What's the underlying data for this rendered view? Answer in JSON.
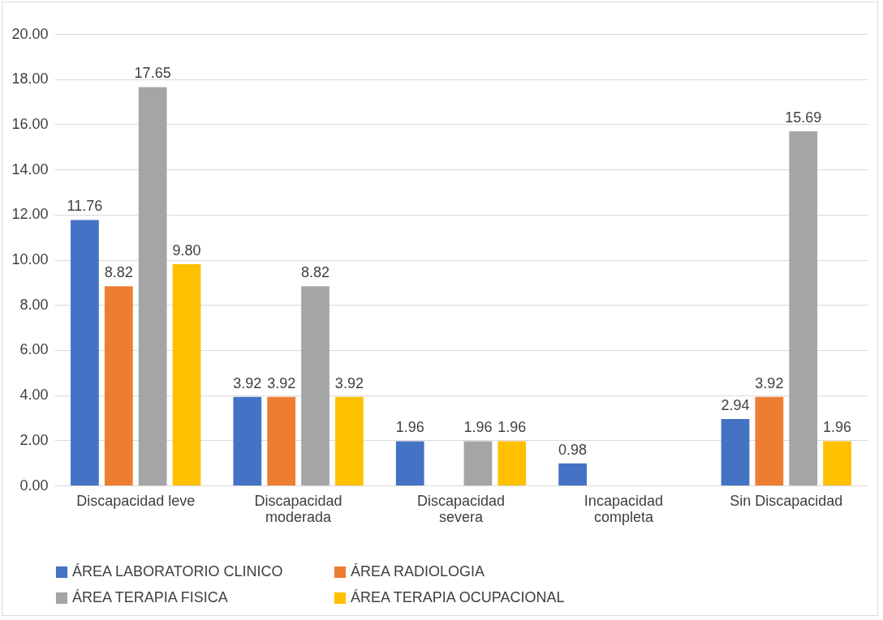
{
  "chart_data": {
    "type": "bar",
    "categories": [
      "Discapacidad leve",
      "Discapacidad moderada",
      "Discapacidad severa",
      "Incapacidad completa",
      "Sin Discapacidad"
    ],
    "series": [
      {
        "name": "ÁREA LABORATORIO CLINICO",
        "color": "#4472c4",
        "values": [
          11.76,
          3.92,
          1.96,
          0.98,
          2.94
        ],
        "value_labels": [
          "11.76",
          "3.92",
          "1.96",
          "0.98",
          "2.94"
        ]
      },
      {
        "name": "ÁREA RADIOLOGIA",
        "color": "#ed7d31",
        "values": [
          8.82,
          3.92,
          null,
          null,
          3.92
        ],
        "value_labels": [
          "8.82",
          "3.92",
          null,
          null,
          "3.92"
        ]
      },
      {
        "name": "ÁREA TERAPIA FISICA",
        "color": "#a5a5a5",
        "values": [
          17.65,
          8.82,
          1.96,
          null,
          15.69
        ],
        "value_labels": [
          "17.65",
          "8.82",
          "1.96",
          null,
          "15.69"
        ]
      },
      {
        "name": "ÁREA TERAPIA OCUPACIONAL",
        "color": "#ffc000",
        "values": [
          9.8,
          3.92,
          1.96,
          null,
          1.96
        ],
        "value_labels": [
          "9.80",
          "3.92",
          "1.96",
          null,
          "1.96"
        ]
      }
    ],
    "ylim": [
      0,
      20
    ],
    "yticks": [
      {
        "value": 0,
        "label": "0.00"
      },
      {
        "value": 2,
        "label": "2.00"
      },
      {
        "value": 4,
        "label": "4.00"
      },
      {
        "value": 6,
        "label": "6.00"
      },
      {
        "value": 8,
        "label": "8.00"
      },
      {
        "value": 10,
        "label": "10.00"
      },
      {
        "value": 12,
        "label": "12.00"
      },
      {
        "value": 14,
        "label": "14.00"
      },
      {
        "value": 16,
        "label": "16.00"
      },
      {
        "value": 18,
        "label": "18.00"
      },
      {
        "value": 20,
        "label": "20.00"
      }
    ],
    "grid": "y",
    "legend": "bottom"
  }
}
